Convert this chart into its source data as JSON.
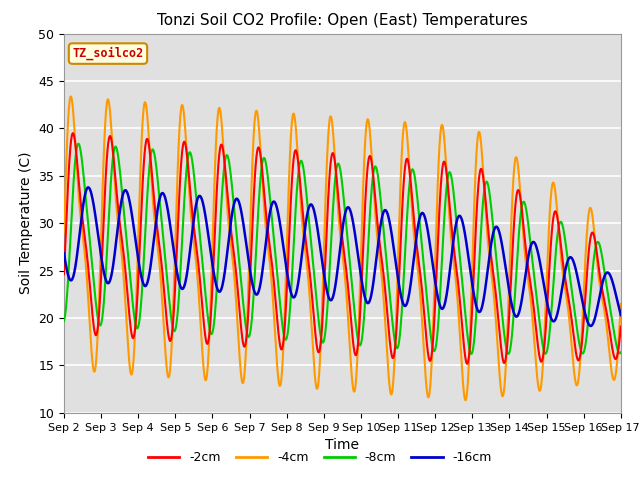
{
  "title": "Tonzi Soil CO2 Profile: Open (East) Temperatures",
  "xlabel": "Time",
  "ylabel": "Soil Temperature (C)",
  "ylim": [
    10,
    50
  ],
  "tick_labels": [
    "Sep 2",
    "Sep 3",
    "Sep 4",
    "Sep 5",
    "Sep 6",
    "Sep 7",
    "Sep 8",
    "Sep 9",
    "Sep 10",
    "Sep 11",
    "Sep 12",
    "Sep 13",
    "Sep 14",
    "Sep 15",
    "Sep 16",
    "Sep 17"
  ],
  "series_labels": [
    "-2cm",
    "-4cm",
    "-8cm",
    "-16cm"
  ],
  "series_colors": [
    "#ff0000",
    "#ff9900",
    "#00cc00",
    "#0000cc"
  ],
  "legend_title": "TZ_soilco2",
  "background_color": "#e0e0e0",
  "figure_color": "#ffffff",
  "grid_color": "#ffffff"
}
